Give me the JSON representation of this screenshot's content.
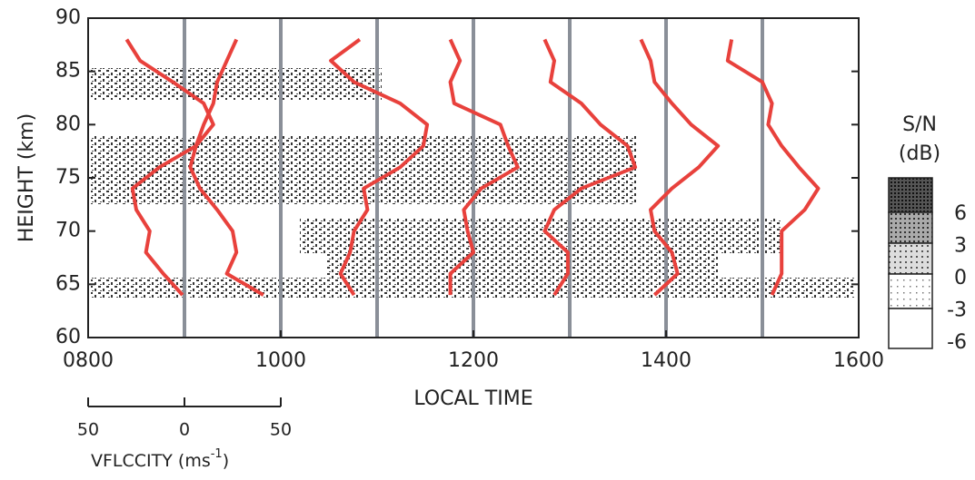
{
  "chart_data": {
    "type": "profile",
    "ylabel": "HEIGHT (km)",
    "xlabel": "LOCAL TIME",
    "ylim": [
      60,
      90
    ],
    "yticks": [
      60,
      65,
      70,
      75,
      80,
      85,
      90
    ],
    "xlim": [
      800,
      1600
    ],
    "xticks": [
      {
        "value": 800,
        "label": "0800"
      },
      {
        "value": 1000,
        "label": "1000"
      },
      {
        "value": 1200,
        "label": "1200"
      },
      {
        "value": 1400,
        "label": "1400"
      },
      {
        "value": 1600,
        "label": "1600"
      }
    ],
    "color": "#e8413c",
    "heights": [
      88,
      86,
      84,
      82,
      80,
      78,
      76,
      74,
      72,
      70,
      68,
      66,
      64
    ],
    "series": [
      {
        "time": 900,
        "values": [
          -30,
          -23,
          -6,
          10,
          15,
          6,
          -13,
          -27,
          -25,
          -18,
          -20,
          -11,
          -1
        ]
      },
      {
        "time": 1000,
        "values": [
          -23,
          -28,
          -33,
          -35,
          -40,
          -44,
          -47,
          -42,
          -33,
          -25,
          -23,
          -28,
          -9
        ]
      },
      {
        "time": 1100,
        "values": [
          -9,
          -24,
          -12,
          12,
          26,
          24,
          12,
          -7,
          -5,
          -12,
          -14,
          -19,
          -12
        ]
      },
      {
        "time": 1200,
        "values": [
          -12,
          -7,
          -12,
          -10,
          14,
          18,
          23,
          4,
          -5,
          -3,
          0,
          -12,
          -12
        ]
      },
      {
        "time": 1300,
        "values": [
          -13,
          -8,
          -10,
          6,
          16,
          30,
          34,
          6,
          -8,
          -13,
          -1,
          -1,
          -8
        ]
      },
      {
        "time": 1400,
        "values": [
          -13,
          -8,
          -6,
          3,
          13,
          27,
          17,
          3,
          -8,
          -6,
          3,
          6,
          -6
        ]
      },
      {
        "time": 1500,
        "values": [
          -16,
          -18,
          0,
          5,
          3,
          10,
          19,
          29,
          22,
          10,
          10,
          10,
          5
        ]
      }
    ],
    "velocity_scale": {
      "label": "VFLCCITY (ms",
      "label_exponent": "-1",
      "label_close": ")",
      "vlim": [
        -50,
        50
      ],
      "ticks": [
        {
          "value": -50,
          "label": "50"
        },
        0,
        50
      ]
    },
    "colorbar": {
      "title": [
        "S/N",
        "(dB)"
      ],
      "ticks": [
        6,
        3,
        0,
        -3,
        -6
      ]
    }
  }
}
